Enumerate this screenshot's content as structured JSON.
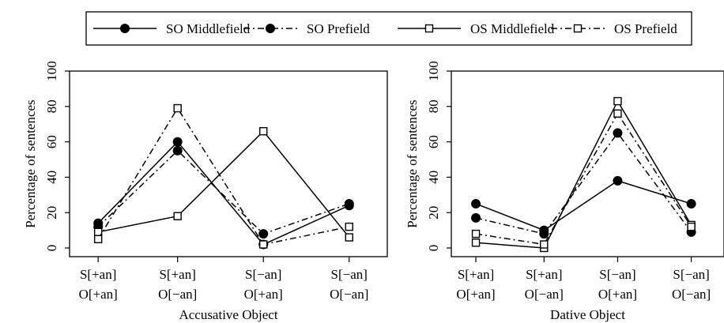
{
  "chart_data": [
    {
      "type": "line",
      "xlabel": "Accusative Object",
      "ylabel": "Percentage of sentences",
      "categories": [
        [
          "S[+an]",
          "O[+an]"
        ],
        [
          "S[+an]",
          "O[−an]"
        ],
        [
          "S[−an]",
          "O[+an]"
        ],
        [
          "S[−an]",
          "O[−an]"
        ]
      ],
      "yticks": [
        "0",
        "20",
        "40",
        "60",
        "80",
        "100"
      ],
      "ylim": [
        0,
        100
      ],
      "series": [
        {
          "name": "SO Middlefield",
          "values": [
            14,
            60,
            2,
            24
          ]
        },
        {
          "name": "SO Prefield",
          "values": [
            12,
            55,
            8,
            25
          ]
        },
        {
          "name": "OS Middlefield",
          "values": [
            9,
            18,
            66,
            6
          ]
        },
        {
          "name": "OS Prefield",
          "values": [
            5,
            79,
            2,
            12
          ]
        }
      ]
    },
    {
      "type": "line",
      "xlabel": "Dative Object",
      "ylabel": "Percentage of sentences",
      "categories": [
        [
          "S[+an]",
          "O[+an]"
        ],
        [
          "S[+an]",
          "O[−an]"
        ],
        [
          "S[−an]",
          "O[+an]"
        ],
        [
          "S[−an]",
          "O[−an]"
        ]
      ],
      "yticks": [
        "0",
        "20",
        "40",
        "60",
        "80",
        "100"
      ],
      "ylim": [
        0,
        100
      ],
      "series": [
        {
          "name": "SO Middlefield",
          "values": [
            25,
            10,
            38,
            25
          ]
        },
        {
          "name": "SO Prefield",
          "values": [
            17,
            8,
            65,
            9
          ]
        },
        {
          "name": "OS Middlefield",
          "values": [
            3,
            0,
            83,
            13
          ]
        },
        {
          "name": "OS Prefield",
          "values": [
            8,
            2,
            76,
            12
          ]
        }
      ]
    }
  ],
  "legend": [
    {
      "name": "SO Middlefield",
      "marker": "filled-circle",
      "line": "solid"
    },
    {
      "name": "SO Prefield",
      "marker": "filled-circle",
      "line": "dashdot"
    },
    {
      "name": "OS Middlefield",
      "marker": "open-square",
      "line": "solid"
    },
    {
      "name": "OS Prefield",
      "marker": "open-square",
      "line": "dashdot"
    }
  ],
  "colors": {
    "ink": "#000000",
    "background": "#ffffff"
  }
}
